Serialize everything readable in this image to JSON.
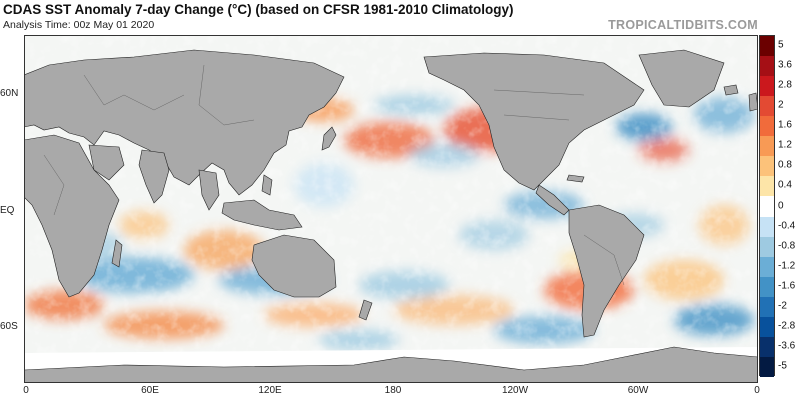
{
  "header": {
    "title": "CDAS SST Anomaly 7-day Change (°C) (based on CFSR 1981-2010 Climatology)",
    "subtitle": "Analysis Time: 00z May 01 2020",
    "brand": "TROPICALTIDBITS.COM"
  },
  "map": {
    "projection": "equirectangular, longitude 0 to 360, centered 180",
    "lat_labels": [
      "60N",
      "EQ",
      "60S"
    ],
    "lon_labels": [
      "0",
      "60E",
      "120E",
      "180",
      "120W",
      "60W",
      "0"
    ],
    "land_color": "#a9a9a9",
    "border_color": "#222222"
  },
  "colorbar": {
    "labels": [
      "5",
      "3.6",
      "2.8",
      "2",
      "1.6",
      "1.2",
      "0.8",
      "0.4",
      "0",
      "-0.4",
      "-0.8",
      "-1.2",
      "-1.6",
      "-2",
      "-2.8",
      "-3.6",
      "-5"
    ],
    "colors": [
      "#6b0000",
      "#a50f15",
      "#cb181d",
      "#e34a33",
      "#f16b3b",
      "#f89a55",
      "#fcc27a",
      "#fde5a8",
      "#ffffff",
      "#c6e2f5",
      "#9ecae1",
      "#6baed6",
      "#4292c6",
      "#2171b5",
      "#08519c",
      "#08306b",
      "#031a42"
    ]
  }
}
